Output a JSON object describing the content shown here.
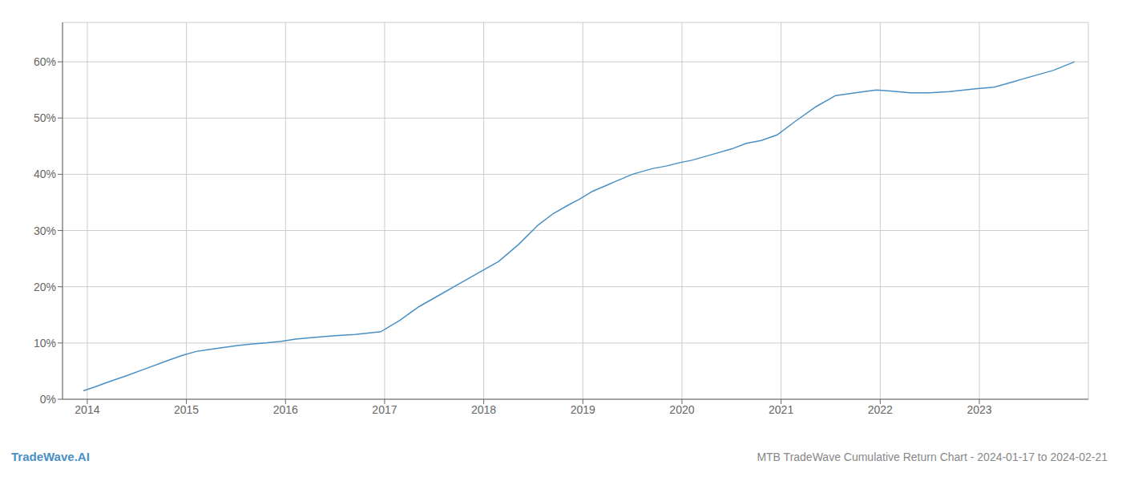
{
  "chart_data": {
    "type": "line",
    "title": "MTB TradeWave Cumulative Return Chart - 2024-01-17 to 2024-02-21",
    "annotations": [
      "TradeWave.AI"
    ],
    "color": "#4a90c4",
    "grid": true,
    "x": [
      2013.96,
      2014.08,
      2014.2,
      2014.4,
      2014.6,
      2014.8,
      2014.96,
      2015.1,
      2015.3,
      2015.5,
      2015.65,
      2015.8,
      2015.96,
      2016.1,
      2016.3,
      2016.5,
      2016.7,
      2016.85,
      2016.96,
      2017.15,
      2017.35,
      2017.55,
      2017.75,
      2017.9,
      2018.0,
      2018.15,
      2018.35,
      2018.55,
      2018.7,
      2018.85,
      2018.96,
      2019.1,
      2019.3,
      2019.5,
      2019.7,
      2019.85,
      2019.96,
      2020.1,
      2020.3,
      2020.5,
      2020.65,
      2020.8,
      2020.96,
      2021.15,
      2021.35,
      2021.55,
      2021.75,
      2021.96,
      2022.1,
      2022.3,
      2022.5,
      2022.7,
      2022.85,
      2022.96,
      2023.15,
      2023.35,
      2023.55,
      2023.75,
      2023.96
    ],
    "values": [
      1.5,
      2.2,
      3.0,
      4.2,
      5.5,
      6.8,
      7.8,
      8.5,
      9.0,
      9.5,
      9.8,
      10.0,
      10.3,
      10.7,
      11.0,
      11.3,
      11.5,
      11.8,
      12.0,
      14.0,
      16.5,
      18.5,
      20.5,
      22.0,
      23.0,
      24.5,
      27.5,
      31.0,
      33.0,
      34.5,
      35.5,
      37.0,
      38.5,
      40.0,
      41.0,
      41.5,
      42.0,
      42.5,
      43.5,
      44.5,
      45.5,
      46.0,
      47.0,
      49.5,
      52.0,
      54.0,
      54.5,
      55.0,
      54.8,
      54.5,
      54.5,
      54.7,
      55.0,
      55.2,
      55.5,
      56.5,
      57.5,
      58.5,
      60.0
    ],
    "xlim": [
      2013.75,
      2024.1
    ],
    "xticks": [
      2014,
      2015,
      2016,
      2017,
      2018,
      2019,
      2020,
      2021,
      2022,
      2023
    ],
    "ylim": [
      0,
      67
    ],
    "yticks": [
      {
        "value": 0,
        "label": "0%"
      },
      {
        "value": 10,
        "label": "10%"
      },
      {
        "value": 20,
        "label": "20%"
      },
      {
        "value": 30,
        "label": "30%"
      },
      {
        "value": 40,
        "label": "40%"
      },
      {
        "value": 50,
        "label": "50%"
      },
      {
        "value": 60,
        "label": "60%"
      }
    ]
  }
}
